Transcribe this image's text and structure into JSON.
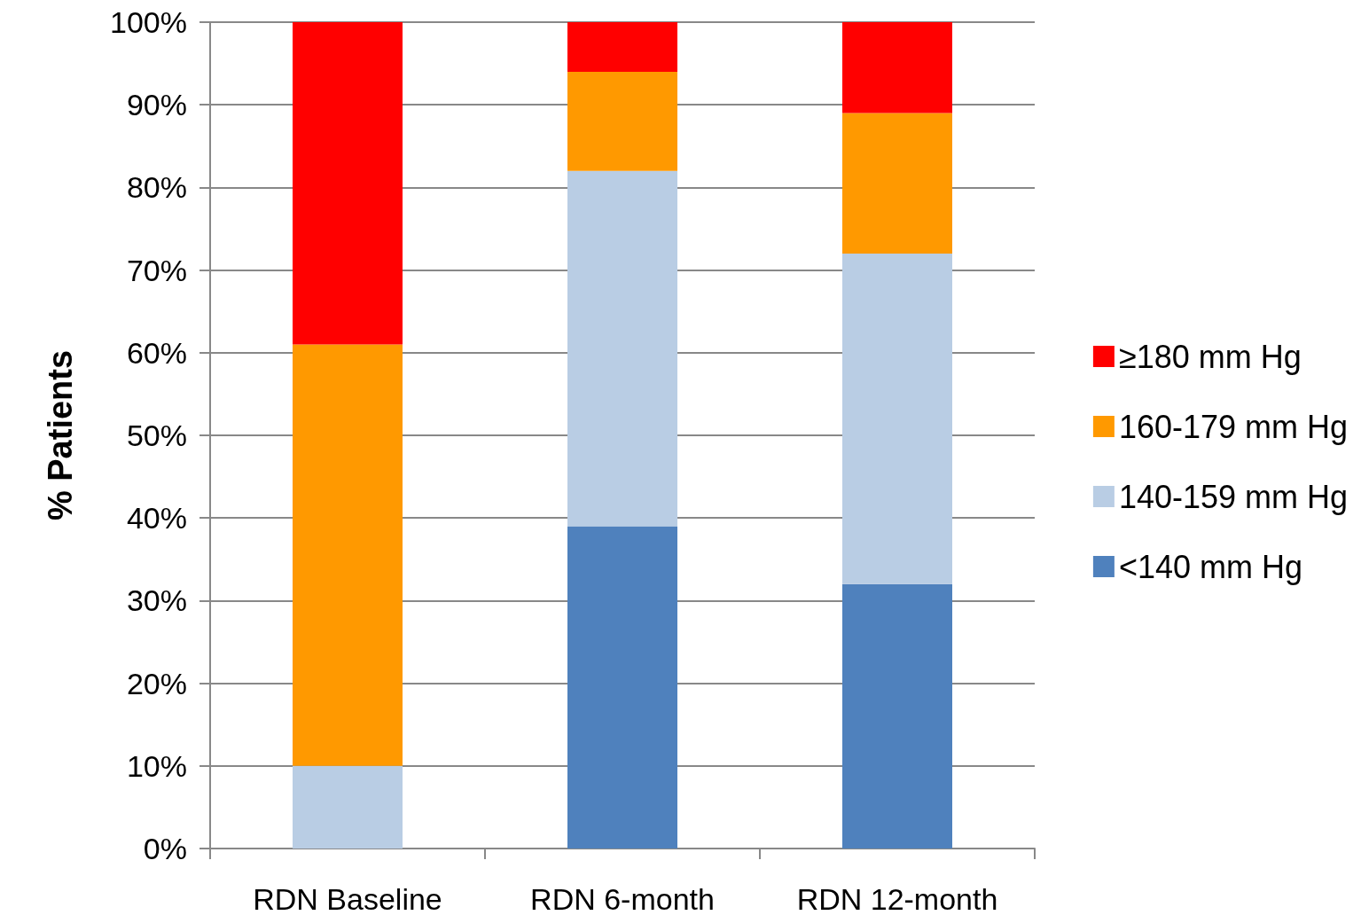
{
  "chart_data": {
    "type": "bar",
    "ylabel": "% Patients",
    "stacked": true,
    "categories": [
      "RDN Baseline",
      "RDN 6-month",
      "RDN 12-month"
    ],
    "series": [
      {
        "name": "<140 mm Hg",
        "color": "#4f81bd",
        "values": [
          0,
          39,
          32
        ]
      },
      {
        "name": "140-159 mm Hg",
        "color": "#b9cde4",
        "values": [
          10,
          43,
          40
        ]
      },
      {
        "name": "160-179 mm Hg",
        "color": "#ff9900",
        "values": [
          51,
          12,
          17
        ]
      },
      {
        "name": "≥180 mm Hg",
        "color": "#ff0000",
        "values": [
          39,
          6,
          11
        ]
      }
    ],
    "ylim": [
      0,
      100
    ],
    "yticks": [
      {
        "value": 0,
        "label": "0%"
      },
      {
        "value": 10,
        "label": "10%"
      },
      {
        "value": 20,
        "label": "20%"
      },
      {
        "value": 30,
        "label": "30%"
      },
      {
        "value": 40,
        "label": "40%"
      },
      {
        "value": 50,
        "label": "50%"
      },
      {
        "value": 60,
        "label": "60%"
      },
      {
        "value": 70,
        "label": "70%"
      },
      {
        "value": 80,
        "label": "80%"
      },
      {
        "value": 90,
        "label": "90%"
      },
      {
        "value": 100,
        "label": "100%"
      }
    ],
    "grid": "y",
    "legend": "right"
  }
}
